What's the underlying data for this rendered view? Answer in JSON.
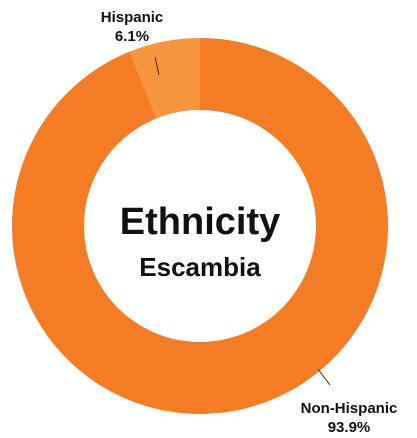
{
  "chart_data": {
    "type": "pie",
    "style": "donut",
    "title": "Ethnicity",
    "subtitle": "Escambia",
    "slices": [
      {
        "label": "Hispanic",
        "value": 6.1,
        "value_label": "6.1%",
        "color": "#f7953f"
      },
      {
        "label": "Non-Hispanic",
        "value": 93.9,
        "value_label": "93.9%",
        "color": "#f37c25"
      }
    ],
    "legend": "none",
    "start_angle": "12 o'clock"
  }
}
